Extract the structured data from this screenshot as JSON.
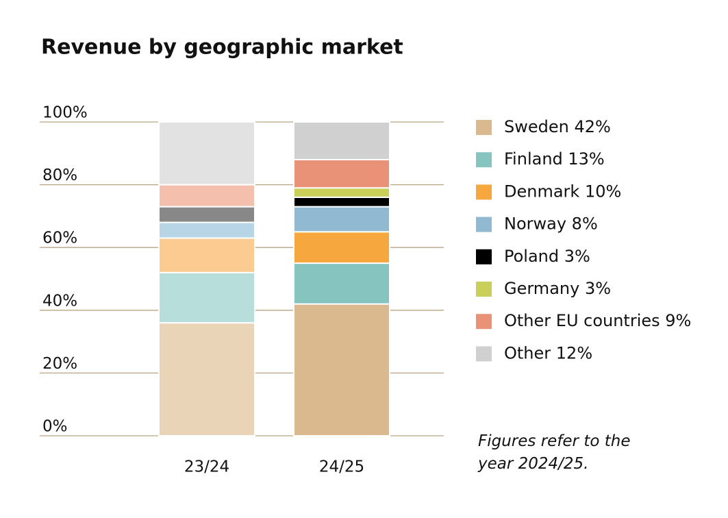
{
  "chart_data": {
    "type": "stacked_bar",
    "title": "Revenue by geographic market",
    "categories": [
      "23/24",
      "24/25"
    ],
    "series": [
      {
        "name": "Sweden 42%",
        "color": "#dbb98e",
        "light_color": "#e9d4b8",
        "values": [
          36,
          42
        ]
      },
      {
        "name": "Finland 13%",
        "color": "#85c4bf",
        "light_color": "#b8dedb",
        "values": [
          16,
          13
        ]
      },
      {
        "name": "Denmark 10%",
        "color": "#f6a83e",
        "light_color": "#fbcb91",
        "values": [
          11,
          10
        ]
      },
      {
        "name": "Norway 8%",
        "color": "#91b9d1",
        "light_color": "#b8d5e5",
        "values": [
          5,
          8
        ]
      },
      {
        "name": "Poland 3%",
        "color": "#000000",
        "light_color": "#888888",
        "values": [
          5,
          3
        ]
      },
      {
        "name": "Germany 3%",
        "color": "#c9cf58",
        "light_color": "#e4e8a7",
        "values": [
          0,
          3
        ]
      },
      {
        "name": "Other EU countries 9%",
        "color": "#e99278",
        "light_color": "#f4bfad",
        "values": [
          7,
          9
        ]
      },
      {
        "name": "Other 12%",
        "color": "#d0d0d0",
        "light_color": "#e3e2e2",
        "values": [
          20,
          12
        ]
      }
    ],
    "ylim": [
      0,
      100
    ],
    "yticks": [
      {
        "value": 0,
        "label": "0%"
      },
      {
        "value": 20,
        "label": "20%"
      },
      {
        "value": 40,
        "label": "40%"
      },
      {
        "value": 60,
        "label": "60%"
      },
      {
        "value": 80,
        "label": "80%"
      },
      {
        "value": 100,
        "label": "100%"
      }
    ],
    "grid": true,
    "note": "Figures refer to the year 2024/25."
  }
}
